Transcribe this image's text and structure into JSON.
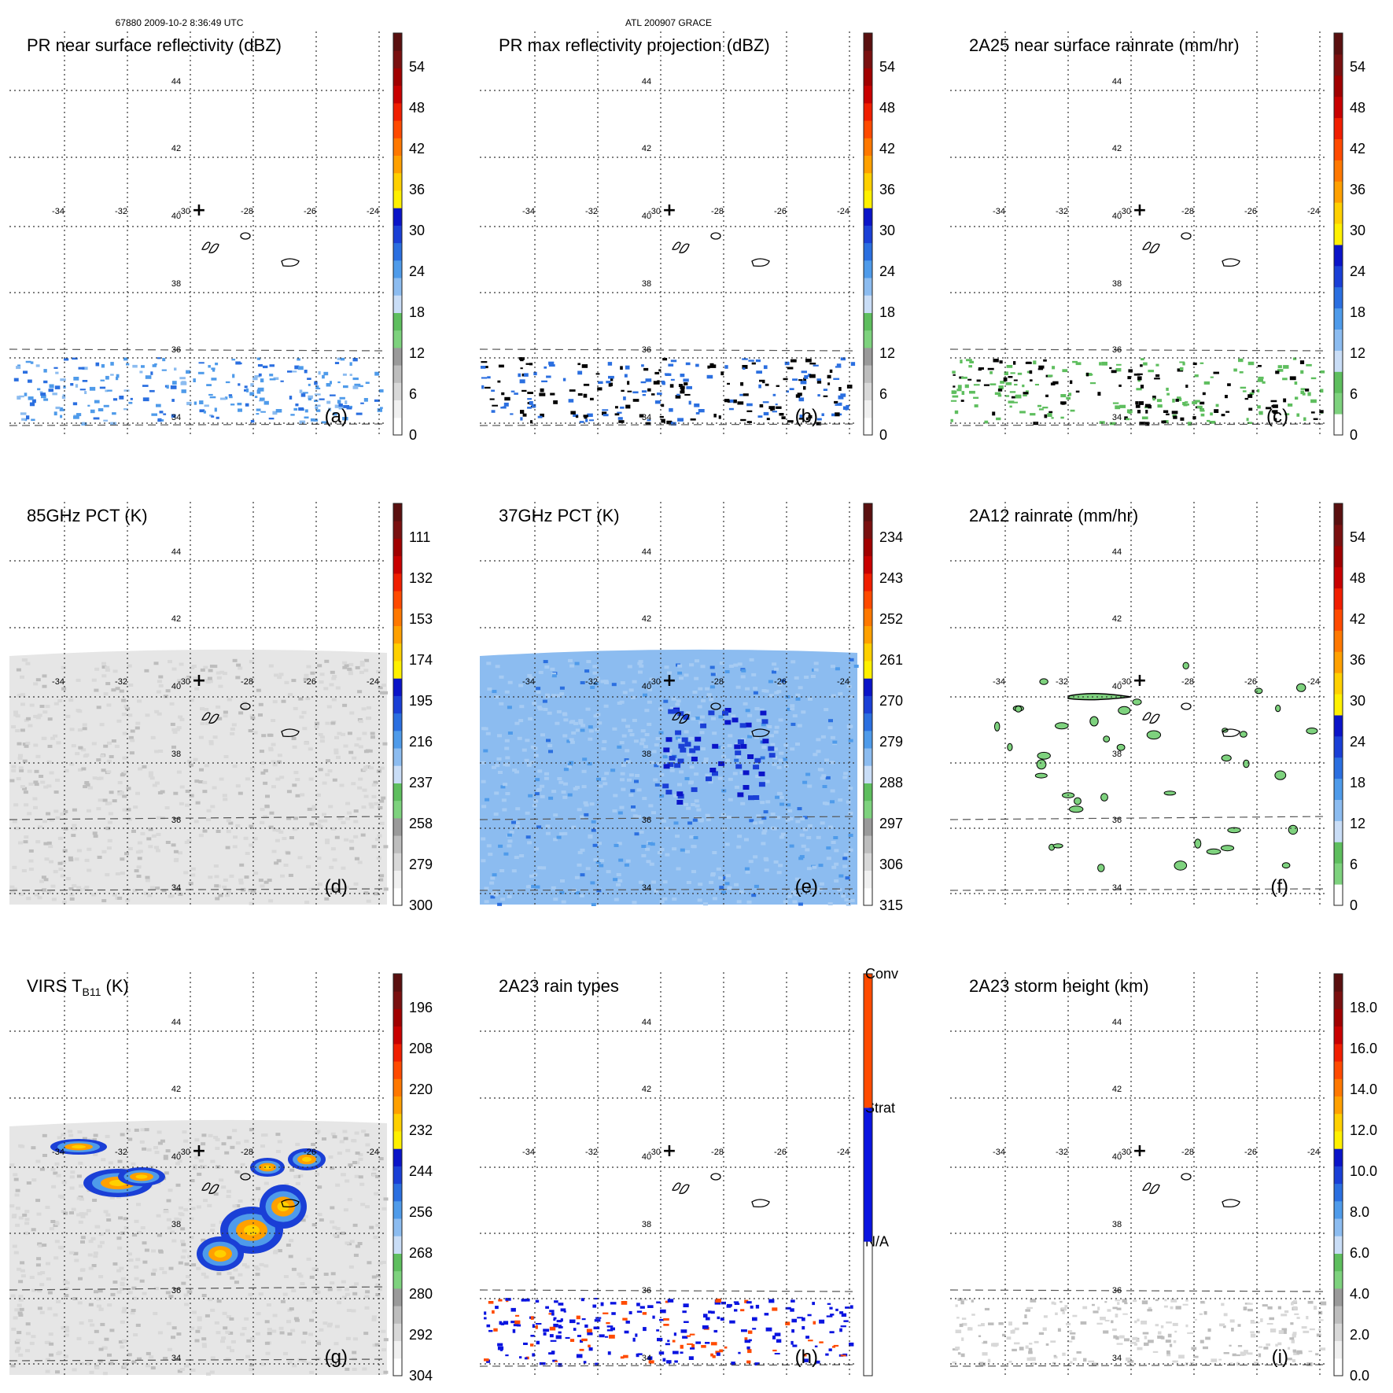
{
  "header": {
    "left": "67880 2009-10-2 8:36:49 UTC",
    "center": "ATL 200907 GRACE"
  },
  "chart_data": [
    {
      "id": "a",
      "type": "heatmap",
      "title": "PR near surface reflectivity (dBZ)",
      "label": "(a)",
      "field": "scatter-blue",
      "swath": "narrow",
      "colorbar": {
        "kind": "numeric",
        "ticks": [
          "0",
          "6",
          "12",
          "18",
          "24",
          "30",
          "36",
          "42",
          "48",
          "54"
        ],
        "colors": [
          "#ffffff",
          "#f0f0f0",
          "#d8d8d8",
          "#bdbdbd",
          "#9a9a9a",
          "#7ed27e",
          "#5ebe5e",
          "#c9ddf6",
          "#8cbcf0",
          "#4f9bea",
          "#2b6fe0",
          "#1a3fd6",
          "#0a14c8",
          "#fff000",
          "#ffd000",
          "#ffa000",
          "#ff7800",
          "#ff4a00",
          "#f01e00",
          "#c80000",
          "#a00000",
          "#7a1010",
          "#5a1010"
        ]
      }
    },
    {
      "id": "b",
      "type": "heatmap",
      "title": "PR max reflectivity projection (dBZ)",
      "label": "(b)",
      "field": "scatter-contour",
      "swath": "narrow",
      "colorbar": {
        "kind": "numeric",
        "ticks": [
          "0",
          "6",
          "12",
          "18",
          "24",
          "30",
          "36",
          "42",
          "48",
          "54"
        ],
        "colors": [
          "#ffffff",
          "#f0f0f0",
          "#d8d8d8",
          "#bdbdbd",
          "#9a9a9a",
          "#7ed27e",
          "#5ebe5e",
          "#c9ddf6",
          "#8cbcf0",
          "#4f9bea",
          "#2b6fe0",
          "#1a3fd6",
          "#0a14c8",
          "#fff000",
          "#ffd000",
          "#ffa000",
          "#ff7800",
          "#ff4a00",
          "#f01e00",
          "#c80000",
          "#a00000",
          "#7a1010",
          "#5a1010"
        ]
      }
    },
    {
      "id": "c",
      "type": "heatmap",
      "title": "2A25 near surface rainrate (mm/hr)",
      "label": "(c)",
      "field": "scatter-green",
      "swath": "narrow",
      "colorbar": {
        "kind": "numeric",
        "ticks": [
          "0",
          "6",
          "12",
          "18",
          "24",
          "30",
          "36",
          "42",
          "48",
          "54"
        ],
        "colors": [
          "#ffffff",
          "#7ed27e",
          "#5ebe5e",
          "#c9ddf6",
          "#8cbcf0",
          "#4f9bea",
          "#2b6fe0",
          "#1a3fd6",
          "#0a14c8",
          "#fff000",
          "#ffd000",
          "#ffa000",
          "#ff7800",
          "#ff4a00",
          "#f01e00",
          "#c80000",
          "#a00000",
          "#7a1010",
          "#5a1010"
        ]
      }
    },
    {
      "id": "d",
      "type": "heatmap",
      "title": "85GHz PCT (K)",
      "label": "(d)",
      "field": "gray-wide",
      "swath": "wide",
      "colorbar": {
        "kind": "numeric",
        "ticks": [
          "300",
          "279",
          "258",
          "237",
          "216",
          "195",
          "174",
          "153",
          "132",
          "111"
        ],
        "colors": [
          "#ffffff",
          "#f0f0f0",
          "#d8d8d8",
          "#bdbdbd",
          "#9a9a9a",
          "#7ed27e",
          "#5ebe5e",
          "#c9ddf6",
          "#8cbcf0",
          "#4f9bea",
          "#2b6fe0",
          "#1a3fd6",
          "#0a14c8",
          "#fff000",
          "#ffd000",
          "#ffa000",
          "#ff7800",
          "#ff4a00",
          "#f01e00",
          "#c80000",
          "#a00000",
          "#7a1010",
          "#5a1010"
        ]
      }
    },
    {
      "id": "e",
      "type": "heatmap",
      "title": "37GHz PCT (K)",
      "label": "(e)",
      "field": "blue-wide",
      "swath": "wide",
      "colorbar": {
        "kind": "numeric",
        "ticks": [
          "315",
          "306",
          "297",
          "288",
          "279",
          "270",
          "261",
          "252",
          "243",
          "234"
        ],
        "colors": [
          "#ffffff",
          "#f0f0f0",
          "#d8d8d8",
          "#bdbdbd",
          "#9a9a9a",
          "#7ed27e",
          "#5ebe5e",
          "#c9ddf6",
          "#8cbcf0",
          "#4f9bea",
          "#2b6fe0",
          "#1a3fd6",
          "#0a14c8",
          "#fff000",
          "#ffd000",
          "#ffa000",
          "#ff7800",
          "#ff4a00",
          "#f01e00",
          "#c80000",
          "#a00000",
          "#7a1010",
          "#5a1010"
        ]
      }
    },
    {
      "id": "f",
      "type": "heatmap",
      "title": "2A12 rainrate (mm/hr)",
      "label": "(f)",
      "field": "green-wide",
      "swath": "wide",
      "colorbar": {
        "kind": "numeric",
        "ticks": [
          "0",
          "6",
          "12",
          "18",
          "24",
          "30",
          "36",
          "42",
          "48",
          "54"
        ],
        "colors": [
          "#ffffff",
          "#7ed27e",
          "#5ebe5e",
          "#c9ddf6",
          "#8cbcf0",
          "#4f9bea",
          "#2b6fe0",
          "#1a3fd6",
          "#0a14c8",
          "#fff000",
          "#ffd000",
          "#ffa000",
          "#ff7800",
          "#ff4a00",
          "#f01e00",
          "#c80000",
          "#a00000",
          "#7a1010",
          "#5a1010"
        ]
      }
    },
    {
      "id": "g",
      "type": "heatmap",
      "title": "VIRS T",
      "title_sub": "B11",
      "title_tail": " (K)",
      "label": "(g)",
      "field": "virs",
      "swath": "wide",
      "colorbar": {
        "kind": "numeric",
        "ticks": [
          "304",
          "292",
          "280",
          "268",
          "256",
          "244",
          "232",
          "220",
          "208",
          "196"
        ],
        "colors": [
          "#ffffff",
          "#f0f0f0",
          "#d8d8d8",
          "#bdbdbd",
          "#9a9a9a",
          "#7ed27e",
          "#5ebe5e",
          "#c9ddf6",
          "#8cbcf0",
          "#4f9bea",
          "#2b6fe0",
          "#1a3fd6",
          "#0a14c8",
          "#fff000",
          "#ffd000",
          "#ffa000",
          "#ff7800",
          "#ff4a00",
          "#f01e00",
          "#c80000",
          "#a00000",
          "#7a1010",
          "#5a1010"
        ]
      }
    },
    {
      "id": "h",
      "type": "heatmap",
      "title": "2A23 rain types",
      "label": "(h)",
      "field": "raintype",
      "swath": "narrow",
      "colorbar": {
        "kind": "categorical",
        "categories": [
          "N/A",
          "Strat",
          "Conv"
        ],
        "colors": [
          "#ffffff",
          "#0a14e0",
          "#ff4a00"
        ]
      }
    },
    {
      "id": "i",
      "type": "heatmap",
      "title": "2A23 storm height (km)",
      "label": "(i)",
      "field": "gray-scatter",
      "swath": "narrow",
      "colorbar": {
        "kind": "numeric",
        "ticks": [
          "0.0",
          "2.0",
          "4.0",
          "6.0",
          "8.0",
          "10.0",
          "12.0",
          "14.0",
          "16.0",
          "18.0"
        ],
        "colors": [
          "#ffffff",
          "#f0f0f0",
          "#d8d8d8",
          "#bdbdbd",
          "#9a9a9a",
          "#7ed27e",
          "#5ebe5e",
          "#c9ddf6",
          "#8cbcf0",
          "#4f9bea",
          "#2b6fe0",
          "#1a3fd6",
          "#0a14c8",
          "#fff000",
          "#ffd000",
          "#ffa000",
          "#ff7800",
          "#ff4a00",
          "#f01e00",
          "#c80000",
          "#a00000",
          "#7a1010",
          "#5a1010"
        ]
      }
    }
  ],
  "map": {
    "lon_ticks": [
      "-34",
      "-32",
      "-30",
      "-28",
      "-26",
      "-24"
    ],
    "lat_ticks": [
      "44",
      "42",
      "40",
      "38",
      "36",
      "34"
    ],
    "center_marker": "+"
  }
}
